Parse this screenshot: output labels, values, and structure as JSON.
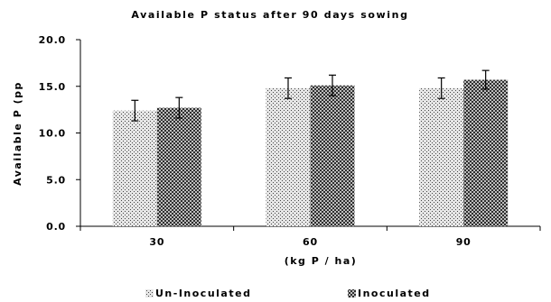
{
  "chart_data": {
    "type": "bar",
    "title": "Available P status after 90 days sowing",
    "xlabel": "(kg P / ha)",
    "ylabel": "Available P (pp",
    "categories": [
      "30",
      "60",
      "90"
    ],
    "ylim": [
      0,
      20
    ],
    "yticks": [
      "0.0",
      "5.0",
      "10.0",
      "15.0",
      "20.0"
    ],
    "grid": false,
    "legend_position": "bottom",
    "series": [
      {
        "name": "Un-Inoculated",
        "values": [
          12.4,
          14.8,
          14.8
        ],
        "error": [
          1.1,
          1.1,
          1.1
        ],
        "pattern": "light-dots"
      },
      {
        "name": "Inoculated",
        "values": [
          12.7,
          15.1,
          15.7
        ],
        "error": [
          1.1,
          1.1,
          1.0
        ],
        "pattern": "dark-checker"
      }
    ],
    "colors": {
      "axis": "#000000",
      "light_fill": "#e6e6e6",
      "light_dot": "#444444",
      "dark_fill": "#2e2e2e",
      "dark_dot": "#dddddd"
    }
  }
}
